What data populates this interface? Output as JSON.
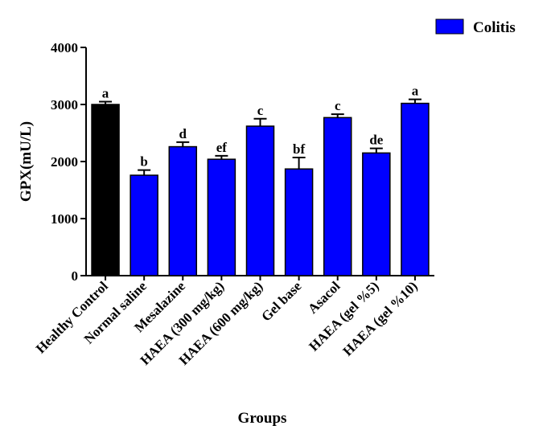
{
  "chart_data": {
    "type": "bar",
    "y_label": "GPX(mU/L)",
    "x_label": "Groups",
    "categories": [
      "Healthy Control",
      "Normal saline",
      "Mesalazine",
      "HAEA (300 mg/kg)",
      "HAEA (600 mg/kg)",
      "Gel base",
      "Asacol",
      "HAEA (gel %5)",
      "HAEA (gel %10)"
    ],
    "series": [
      {
        "name": "Colitis",
        "color": "#0000ff",
        "colors": [
          "#000000",
          "#0000ff",
          "#0000ff",
          "#0000ff",
          "#0000ff",
          "#0000ff",
          "#0000ff",
          "#0000ff",
          "#0000ff"
        ],
        "values": [
          3000,
          1760,
          2260,
          2040,
          2620,
          1870,
          2770,
          2150,
          3020
        ],
        "errors": [
          50,
          90,
          80,
          60,
          130,
          200,
          60,
          80,
          70
        ]
      }
    ],
    "annotations": [
      "a",
      "b",
      "d",
      "ef",
      "c",
      "bf",
      "c",
      "de",
      "a"
    ],
    "ylim": [
      0,
      4000
    ],
    "yticks": [
      0,
      1000,
      2000,
      3000,
      4000
    ],
    "legend": "top-right"
  }
}
